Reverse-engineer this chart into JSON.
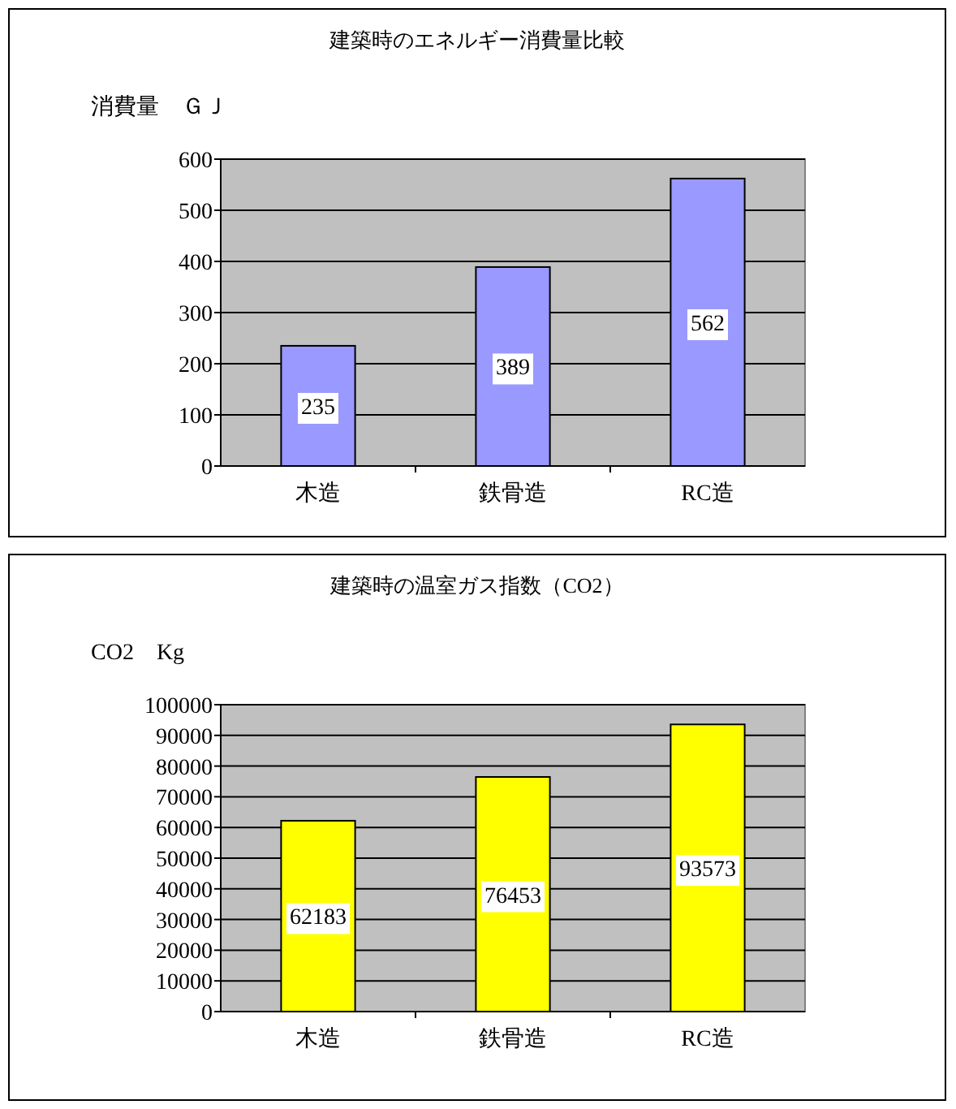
{
  "chart_data": [
    {
      "type": "bar",
      "title": "建築時のエネルギー消費量比較",
      "ylabel": "消費量　ＧＪ",
      "categories": [
        "木造",
        "鉄骨造",
        "RC造"
      ],
      "values": [
        235,
        389,
        562
      ],
      "color": "#9999ff",
      "ylim": [
        0,
        600
      ],
      "yticks": [
        0,
        100,
        200,
        300,
        400,
        500,
        600
      ],
      "grid": "y",
      "data_labels": true
    },
    {
      "type": "bar",
      "title": "建築時の温室ガス指数（CO2）",
      "ylabel": "CO2　Kg",
      "categories": [
        "木造",
        "鉄骨造",
        "RC造"
      ],
      "values": [
        62183,
        76453,
        93573
      ],
      "color": "#ffff00",
      "ylim": [
        0,
        100000
      ],
      "yticks": [
        0,
        10000,
        20000,
        30000,
        40000,
        50000,
        60000,
        70000,
        80000,
        90000,
        100000
      ],
      "grid": "y",
      "data_labels": true
    }
  ]
}
